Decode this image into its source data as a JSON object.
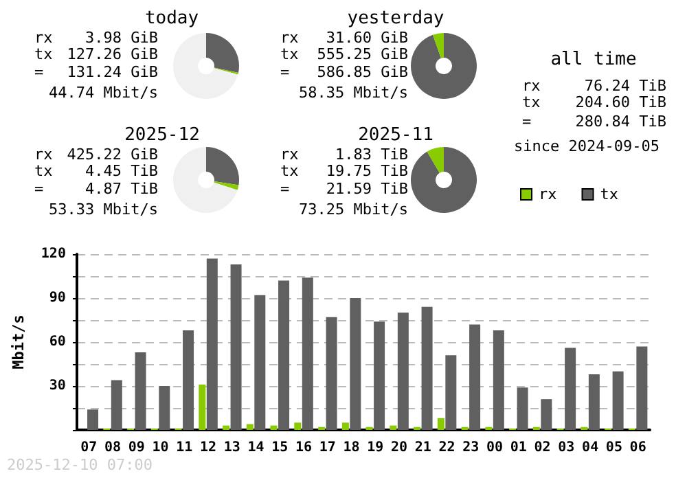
{
  "chart_data": [
    {
      "type": "donut",
      "title": "today",
      "categories": [
        null,
        null,
        null
      ],
      "values": [
        28.3,
        0.9,
        70.8
      ],
      "colors": [
        "#606060",
        "#88cc00",
        "#f0f0f0"
      ],
      "annotations": [
        "rx 3.98 GiB",
        "tx 127.26 GiB",
        "= 131.24 GiB",
        "44.74 Mbit/s"
      ]
    },
    {
      "type": "donut",
      "title": "yesterday",
      "categories": [
        null,
        null
      ],
      "values": [
        94.6,
        5.4
      ],
      "colors": [
        "#606060",
        "#88cc00"
      ],
      "annotations": [
        "rx 31.60 GiB",
        "tx 555.25 GiB",
        "= 586.85 GiB",
        "58.35 Mbit/s"
      ]
    },
    {
      "type": "other",
      "title": "all time",
      "annotations": [
        "rx 76.24 TiB",
        "tx 204.60 TiB",
        "= 280.84 TiB",
        "since 2024-09-05"
      ]
    },
    {
      "type": "donut",
      "title": "2025-12",
      "categories": [
        null,
        null,
        null
      ],
      "values": [
        27.5,
        2.5,
        70
      ],
      "colors": [
        "#606060",
        "#88cc00",
        "#f0f0f0"
      ],
      "annotations": [
        "rx 425.22 GiB",
        "tx 4.45 TiB",
        "= 4.87 TiB",
        "53.33 Mbit/s"
      ]
    },
    {
      "type": "donut",
      "title": "2025-11",
      "categories": [
        null,
        null
      ],
      "values": [
        91.5,
        8.5
      ],
      "colors": [
        "#606060",
        "#88cc00"
      ],
      "annotations": [
        "rx 1.83 TiB",
        "tx 19.75 TiB",
        "= 21.59 TiB",
        "73.25 Mbit/s"
      ]
    },
    {
      "type": "bar",
      "categories": [
        "07",
        "08",
        "09",
        "10",
        "11",
        "12",
        "13",
        "14",
        "15",
        "16",
        "17",
        "18",
        "19",
        "20",
        "21",
        "22",
        "23",
        "00",
        "01",
        "02",
        "03",
        "04",
        "05",
        "06"
      ],
      "series": [
        {
          "name": "rx",
          "color": "#88cc00",
          "values": [
            0,
            1,
            1,
            1,
            1,
            31,
            3,
            4,
            3,
            5,
            2,
            5,
            2,
            3,
            2,
            8,
            2,
            2,
            1,
            2,
            1,
            2,
            1,
            1
          ]
        },
        {
          "name": "tx",
          "color": "#606060",
          "values": [
            14,
            34,
            53,
            30,
            68,
            117,
            113,
            92,
            102,
            104,
            77,
            90,
            74,
            80,
            84,
            51,
            72,
            68,
            29,
            21,
            56,
            38,
            40,
            57
          ]
        }
      ],
      "ylabel": "Mbit/s",
      "ylim": [
        0,
        120
      ],
      "yticks": [
        {
          "value": 0,
          "label": null
        },
        {
          "value": 15,
          "label": null
        },
        30,
        {
          "value": 45,
          "label": null
        },
        60,
        {
          "value": 75,
          "label": null
        },
        90,
        {
          "value": 105,
          "label": null
        },
        120
      ],
      "grid": "y",
      "legend": "top right",
      "annotations": [
        "2025-12-10 07:00"
      ]
    }
  ]
}
